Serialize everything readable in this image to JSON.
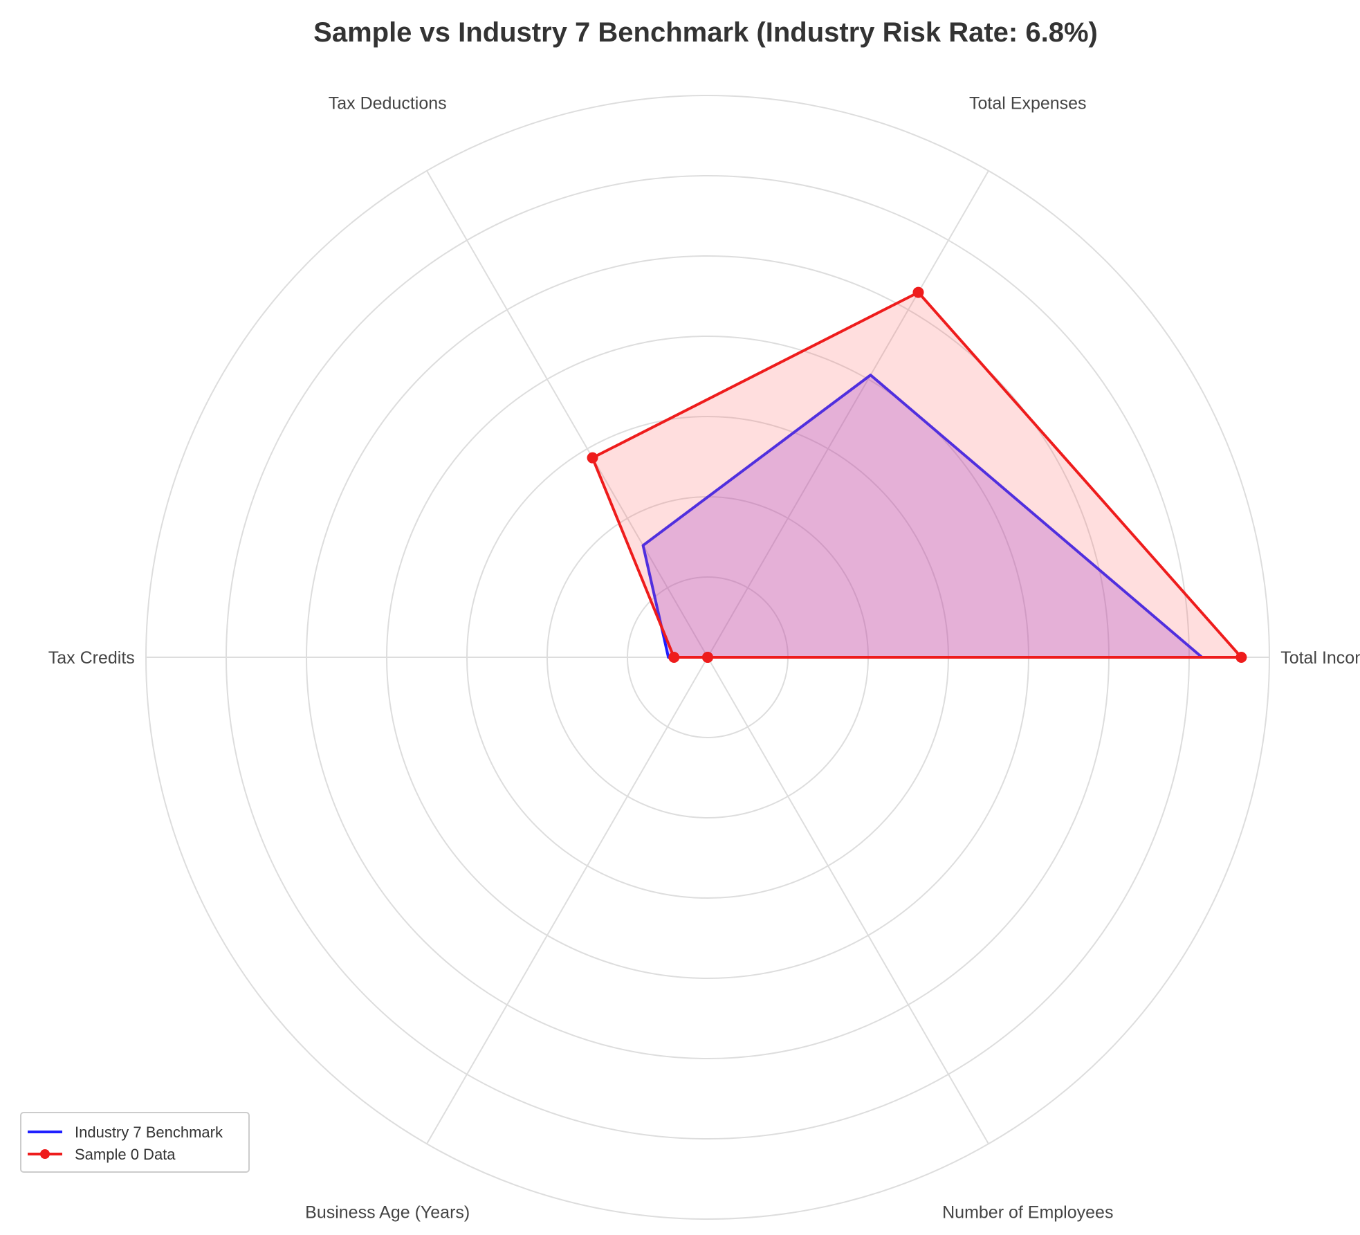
{
  "chart_data": {
    "type": "radar",
    "title": "Sample vs Industry 7 Benchmark (Industry Risk Rate: 6.8%)",
    "axes": [
      "Total Income",
      "Total Expenses",
      "Tax Deductions",
      "Tax Credits",
      "Business Age (Years)",
      "Number of Employees"
    ],
    "rlim": [
      0,
      1
    ],
    "grid": true,
    "grid_rings": 7,
    "legend_position": "lower-left",
    "series": [
      {
        "name": "Industry 7 Benchmark",
        "values": [
          0.88,
          0.58,
          0.23,
          0.07,
          0.0,
          0.0
        ],
        "color": "#1f1fff",
        "fill": "#8a2be2",
        "fill_opacity": 0.28,
        "markers": false
      },
      {
        "name": "Sample 0 Data",
        "values": [
          0.95,
          0.75,
          0.41,
          0.06,
          0.0,
          0.0
        ],
        "color": "#ee1c1c",
        "fill": "#ff6b6b",
        "fill_opacity": 0.22,
        "markers": true
      }
    ]
  }
}
